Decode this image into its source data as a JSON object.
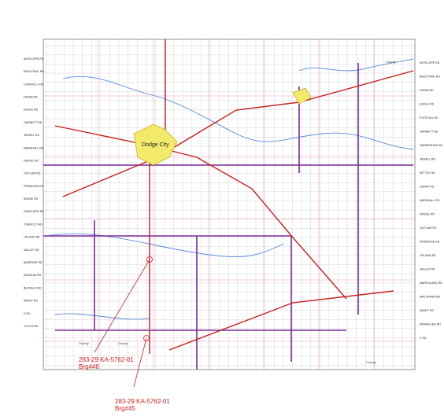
{
  "map": {
    "city": "Dodge City",
    "left_roads": [
      "ANTELOPE RD",
      "BACKTRAIL RD",
      "CHANTILLY RD",
      "DENIM RD",
      "EAGLE RD",
      "GARNETT RD",
      "JEWELL RD",
      "MARSHALL RD",
      "NICKEL RD",
      "OUTLAW RD",
      "PRIMROSE RD",
      "SENSE RD",
      "SADDLERD RD",
      "TOBACCO RD",
      "UPLAND RD",
      "VALLEY RD",
      "WARRIOR RD",
      "MUSEUM RD",
      "BUFFALO RD",
      "WINDY RD",
      "X RD",
      "YUCCA RD"
    ],
    "right_roads": [
      "ANTELOPE RD",
      "BACKTRAIL RD",
      "DENIM RD",
      "EAGLE RD",
      "FOOTHILL RD",
      "GARNETT RD",
      "HORSESHOE RD",
      "JEWELL RD",
      "KETTLE RD",
      "LARIAT RD",
      "MARSHALL RD",
      "NICKEL RD",
      "OUTLAW RD",
      "PRIMROSE RD",
      "UPLAND RD",
      "VALLEY RD",
      "MARSHLAND RD",
      "WALSPERR RD",
      "WINDY RD",
      "WRANGLER RD",
      "X RD"
    ],
    "county_labels": [
      "County",
      "County",
      "County",
      "County"
    ],
    "annotations": [
      {
        "lines": [
          "283-29 KA-5762-01",
          "Brg#46"
        ]
      },
      {
        "lines": [
          "283-29 KA-5762-01",
          "Brg#45"
        ]
      }
    ]
  }
}
